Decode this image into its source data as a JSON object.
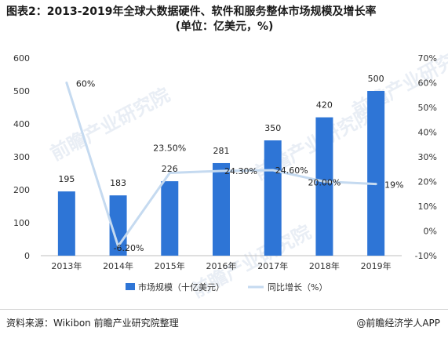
{
  "title": {
    "line1": "图表2：2013-2019年全球大数据硬件、软件和服务整体市场规模及增长率",
    "line2": "(单位：亿美元，%)"
  },
  "watermark": "前瞻产业研究院",
  "footer": {
    "source": "资料来源：Wikibon 前瞻产业研究院整理",
    "brand": "@前瞻经济学人APP"
  },
  "colors": {
    "bar": "#2e75d6",
    "line": "#c5daf0",
    "axis_text": "#333333",
    "grid": "#e6e6e6"
  },
  "chart_data": {
    "type": "bar",
    "categories": [
      "2013年",
      "2014年",
      "2015年",
      "2016年",
      "2017年",
      "2018年",
      "2019年"
    ],
    "series": [
      {
        "name": "市场规模（十亿美元）",
        "type": "bar",
        "axis": "left",
        "values": [
          195,
          183,
          226,
          281,
          350,
          420,
          500
        ],
        "labels": [
          "195",
          "183",
          "226",
          "281",
          "350",
          "420",
          "500"
        ]
      },
      {
        "name": "同比增长（%）",
        "type": "line",
        "axis": "right",
        "values": [
          60,
          -6.2,
          23.5,
          24.3,
          24.6,
          20.0,
          19
        ],
        "labels": [
          "60%",
          "-6.20%",
          "23.50%",
          "24.30%",
          "24.60%",
          "20.00%",
          "19%"
        ]
      }
    ],
    "y_left": {
      "ticks": [
        "0",
        "100",
        "200",
        "300",
        "400",
        "500",
        "600"
      ],
      "range": [
        0,
        600
      ]
    },
    "y_right": {
      "ticks": [
        "-10%",
        "0%",
        "10%",
        "20%",
        "30%",
        "40%",
        "50%",
        "60%",
        "70%"
      ],
      "range": [
        -10,
        70
      ]
    },
    "legend_position": "bottom",
    "grid": false
  }
}
